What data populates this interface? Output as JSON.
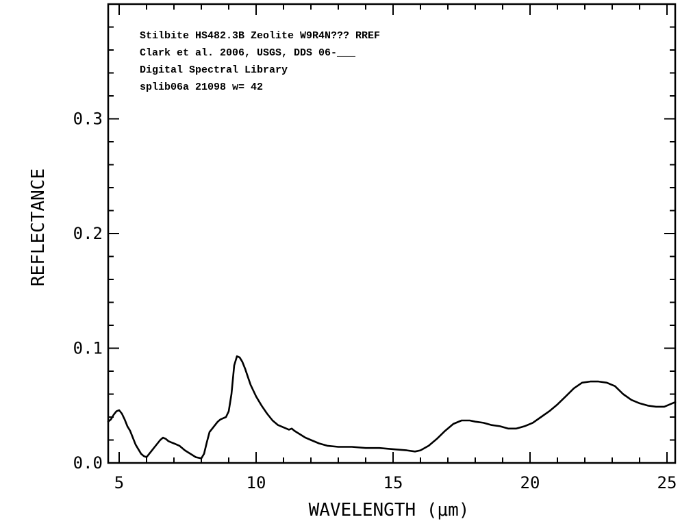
{
  "chart_data": {
    "type": "line",
    "title_lines": [
      "Stilbite HS482.3B Zeolite  W9R4N??? RREF",
      "Clark et al. 2006, USGS, DDS 06-___",
      "Digital Spectral Library",
      "splib06a 21098 w= 42"
    ],
    "xlabel": "WAVELENGTH (μm)",
    "ylabel": "REFLECTANCE",
    "xlim": [
      4.6,
      25.3
    ],
    "ylim": [
      0.0,
      0.4
    ],
    "x_ticks": [
      5,
      10,
      15,
      20,
      25
    ],
    "y_ticks": [
      0.0,
      0.1,
      0.2,
      0.3
    ],
    "x_tick_labels": [
      "5",
      "10",
      "15",
      "20",
      "25"
    ],
    "y_tick_labels": [
      "0.0",
      "0.1",
      "0.2",
      "0.3"
    ],
    "grid": false,
    "series": [
      {
        "color": "#000000",
        "x": [
          4.6,
          4.7,
          4.8,
          4.9,
          5.0,
          5.1,
          5.2,
          5.3,
          5.4,
          5.5,
          5.6,
          5.7,
          5.8,
          5.9,
          6.0,
          6.1,
          6.2,
          6.3,
          6.4,
          6.5,
          6.6,
          6.7,
          6.8,
          6.9,
          7.0,
          7.2,
          7.4,
          7.6,
          7.8,
          8.0,
          8.1,
          8.2,
          8.3,
          8.4,
          8.5,
          8.6,
          8.7,
          8.8,
          8.9,
          9.0,
          9.1,
          9.2,
          9.3,
          9.4,
          9.5,
          9.6,
          9.7,
          9.8,
          9.9,
          10.0,
          10.2,
          10.4,
          10.6,
          10.8,
          11.0,
          11.2,
          11.3,
          11.4,
          11.6,
          11.8,
          12.0,
          12.3,
          12.6,
          13.0,
          13.5,
          14.0,
          14.5,
          15.0,
          15.5,
          15.8,
          16.0,
          16.3,
          16.6,
          16.9,
          17.2,
          17.5,
          17.8,
          18.0,
          18.3,
          18.6,
          18.9,
          19.2,
          19.5,
          19.8,
          20.1,
          20.4,
          20.7,
          21.0,
          21.3,
          21.6,
          21.9,
          22.2,
          22.5,
          22.8,
          23.1,
          23.4,
          23.7,
          24.0,
          24.3,
          24.6,
          24.9,
          25.1,
          25.3
        ],
        "y": [
          0.036,
          0.038,
          0.042,
          0.045,
          0.046,
          0.043,
          0.038,
          0.032,
          0.028,
          0.022,
          0.016,
          0.012,
          0.008,
          0.006,
          0.005,
          0.008,
          0.011,
          0.014,
          0.017,
          0.02,
          0.022,
          0.021,
          0.019,
          0.018,
          0.017,
          0.015,
          0.011,
          0.008,
          0.005,
          0.004,
          0.008,
          0.018,
          0.027,
          0.03,
          0.033,
          0.036,
          0.038,
          0.039,
          0.04,
          0.045,
          0.06,
          0.085,
          0.093,
          0.092,
          0.088,
          0.082,
          0.075,
          0.068,
          0.063,
          0.058,
          0.05,
          0.043,
          0.037,
          0.033,
          0.031,
          0.029,
          0.03,
          0.028,
          0.025,
          0.022,
          0.02,
          0.017,
          0.015,
          0.014,
          0.014,
          0.013,
          0.013,
          0.012,
          0.011,
          0.01,
          0.011,
          0.015,
          0.021,
          0.028,
          0.034,
          0.037,
          0.037,
          0.036,
          0.035,
          0.033,
          0.032,
          0.03,
          0.03,
          0.032,
          0.035,
          0.04,
          0.045,
          0.051,
          0.058,
          0.065,
          0.07,
          0.071,
          0.071,
          0.07,
          0.067,
          0.06,
          0.055,
          0.052,
          0.05,
          0.049,
          0.049,
          0.051,
          0.053
        ]
      }
    ]
  }
}
